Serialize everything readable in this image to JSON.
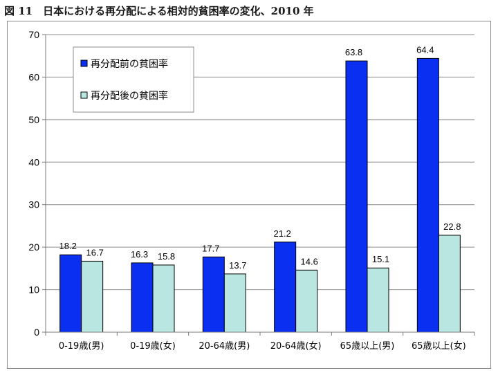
{
  "figure": {
    "title": "図 11　日本における再分配による相対的貧困率の変化、2010 年"
  },
  "chart_data": {
    "type": "bar",
    "categories": [
      "0-19歳(男)",
      "0-19歳(女)",
      "20-64歳(男)",
      "20-64歳(女)",
      "65歳以上(男)",
      "65歳以上(女)"
    ],
    "series": [
      {
        "name": "再分配前の貧困率",
        "values": [
          18.2,
          16.3,
          17.7,
          21.2,
          63.8,
          64.4
        ],
        "color": "#0a2ff0"
      },
      {
        "name": "再分配後の貧困率",
        "values": [
          16.7,
          15.8,
          13.7,
          14.6,
          15.1,
          22.8
        ],
        "color": "#b9e6e0"
      }
    ],
    "ylim": [
      0,
      70
    ],
    "yticks": [
      0,
      10,
      20,
      30,
      40,
      50,
      60,
      70
    ],
    "grid": true,
    "legend": "top-left"
  }
}
